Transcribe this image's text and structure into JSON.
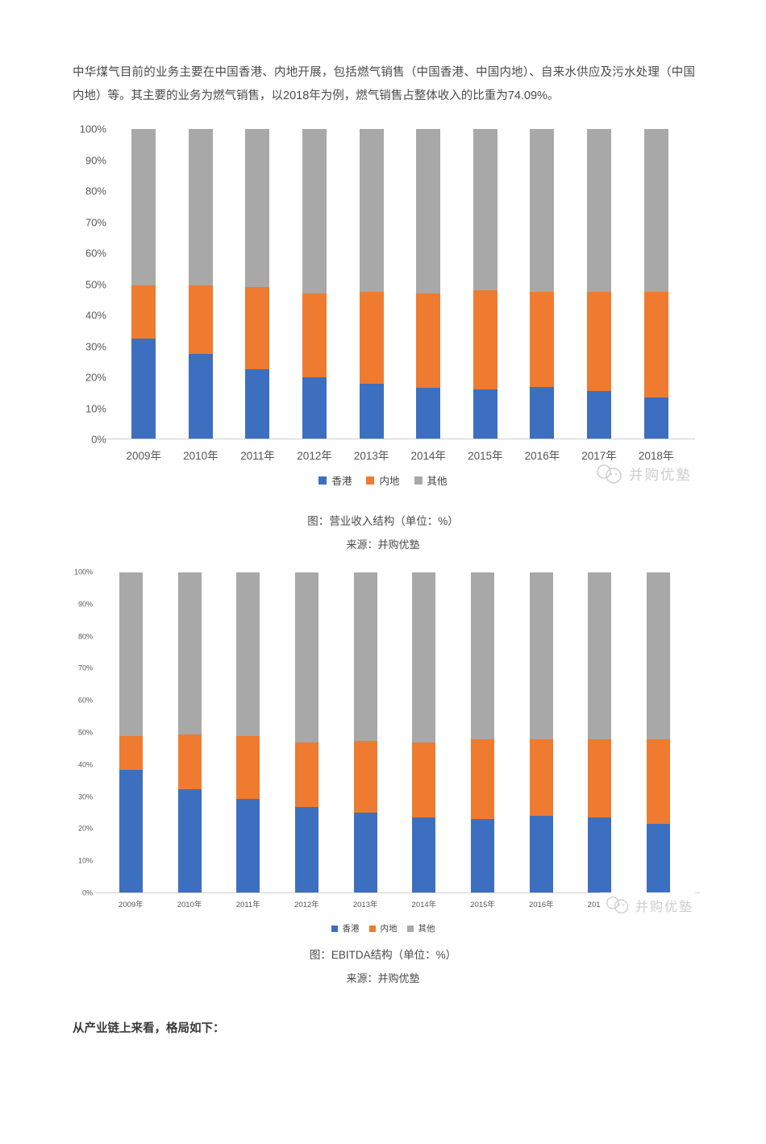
{
  "page": {
    "intro_text": "中华煤气目前的业务主要在中国香港、内地开展，包括燃气销售（中国香港、中国内地）、自来水供应及污水处理（中国内地）等。其主要的业务为燃气销售，以2018年为例，燃气销售占整体收入的比重为74.09%。",
    "footer_heading": "从产业链上来看，格局如下："
  },
  "watermark": {
    "text": "并购优塾"
  },
  "colors": {
    "hongkong": "#3C6FC0",
    "mainland": "#EE7B30",
    "other": "#A8A8A8",
    "axis_line": "#CFCFCF",
    "tick_text": "#595959",
    "watermark_text": "#CDCDCD"
  },
  "chart_data": [
    {
      "type": "bar",
      "stacked": true,
      "title": "图：营业收入结构（单位：%）",
      "source": "来源：并购优塾",
      "categories": [
        "2009年",
        "2010年",
        "2011年",
        "2012年",
        "2013年",
        "2014年",
        "2015年",
        "2016年",
        "2017年",
        "2018年"
      ],
      "series": [
        {
          "name": "香港",
          "color": "#3C6FC0",
          "values": [
            32.5,
            27.5,
            22.5,
            20,
            18,
            16.5,
            16,
            17,
            15.5,
            13.5
          ]
        },
        {
          "name": "内地",
          "color": "#EE7B30",
          "values": [
            17,
            22,
            26.5,
            27,
            29.5,
            30.5,
            32,
            30.5,
            32,
            34
          ]
        },
        {
          "name": "其他",
          "color": "#A8A8A8",
          "values": [
            50.5,
            50.5,
            51,
            53,
            52.5,
            53,
            52,
            52.5,
            52.5,
            52.5
          ]
        }
      ],
      "ylim": [
        0,
        100
      ],
      "yticks": [
        "0%",
        "10%",
        "20%",
        "30%",
        "40%",
        "50%",
        "60%",
        "70%",
        "80%",
        "90%",
        "100%"
      ],
      "legend_position": "bottom",
      "grid": false
    },
    {
      "type": "bar",
      "stacked": true,
      "title": "图：EBITDA结构（单位：%）",
      "source": "来源：并购优塾",
      "categories": [
        "2009年",
        "2010年",
        "2011年",
        "2012年",
        "2013年",
        "2014年",
        "2015年",
        "2016年",
        "2017年",
        "2018年"
      ],
      "series": [
        {
          "name": "香港",
          "color": "#3C6FC0",
          "values": [
            38.5,
            32.5,
            29.5,
            27,
            25,
            23.5,
            23,
            24,
            23.5,
            21.5
          ]
        },
        {
          "name": "内地",
          "color": "#EE7B30",
          "values": [
            10.5,
            17,
            19.5,
            20,
            22.5,
            23.5,
            25,
            24,
            24.5,
            26.5
          ]
        },
        {
          "name": "其他",
          "color": "#A8A8A8",
          "values": [
            51,
            50.5,
            51,
            53,
            52.5,
            53,
            52,
            52,
            52,
            52
          ]
        }
      ],
      "ylim": [
        0,
        100
      ],
      "yticks": [
        "0%",
        "10%",
        "20%",
        "30%",
        "40%",
        "50%",
        "60%",
        "70%",
        "80%",
        "90%",
        "100%"
      ],
      "legend_position": "bottom",
      "grid": false
    }
  ]
}
